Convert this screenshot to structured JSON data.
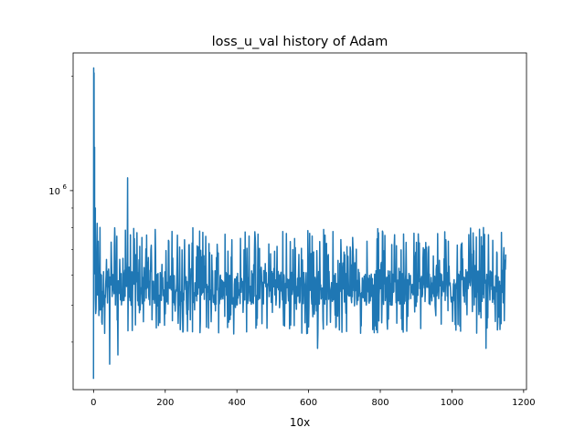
{
  "chart_data": {
    "type": "line",
    "title": "loss_u_val history of Adam",
    "xlabel": "10x",
    "ylabel": "",
    "xlim": [
      -57,
      1208
    ],
    "ylim": [
      300000,
      2300000
    ],
    "yscale": "log",
    "grid": false,
    "legend": "none",
    "color": "#1f77b4",
    "x_ticks": [
      0,
      200,
      400,
      600,
      800,
      1000,
      1200
    ],
    "x_tick_labels": [
      "0",
      "200",
      "400",
      "600",
      "800",
      "1000",
      "1200"
    ],
    "y_major_ticks": [
      1000000
    ],
    "y_major_tick_base": "10",
    "y_major_tick_exp": "6",
    "y_minor_ticks": [
      400000,
      500000,
      600000,
      700000,
      800000,
      900000,
      2000000
    ],
    "series": [
      {
        "x_start": 0,
        "x_end": 1150,
        "peak": {
          "x": 0,
          "y": 2100000
        },
        "initial_min": {
          "x": 0,
          "y": 320000
        },
        "notable_points": [
          {
            "x": 10,
            "y": 820000
          },
          {
            "x": 18,
            "y": 800000
          },
          {
            "x": 45,
            "y": 350000
          },
          {
            "x": 68,
            "y": 370000
          },
          {
            "x": 95,
            "y": 1080000
          },
          {
            "x": 625,
            "y": 385000
          },
          {
            "x": 1095,
            "y": 385000
          },
          {
            "x": 1150,
            "y": 680000
          }
        ],
        "band_low": 500000,
        "band_high": 620000,
        "osc_min": 420000,
        "osc_max": 800000,
        "samples": 1150
      }
    ]
  }
}
